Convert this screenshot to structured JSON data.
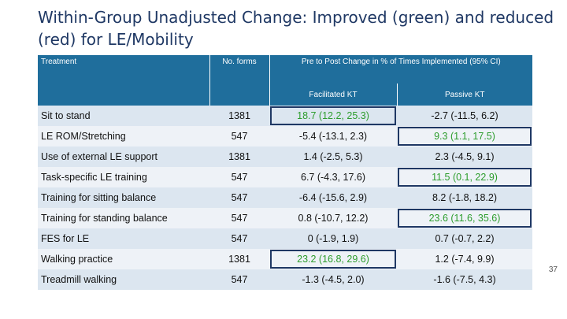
{
  "title": "Within-Group Unadjusted Change: Improved (green) and reduced (red) for LE/Mobility",
  "table": {
    "headers": {
      "treatment": "Treatment",
      "forms": "No. forms",
      "change": "Pre to Post Change in % of Times Implemented (95% CI)",
      "facilitated": "Facilitated KT",
      "passive": "Passive KT"
    },
    "rows": [
      {
        "treatment": "Sit to stand",
        "forms": "1381",
        "facilitated": "18.7 (12.2, 25.3)",
        "passive": "-2.7 (-11.5, 6.2)"
      },
      {
        "treatment": "LE ROM/Stretching",
        "forms": "547",
        "facilitated": "-5.4 (-13.1, 2.3)",
        "passive": "9.3 (1.1, 17.5)"
      },
      {
        "treatment": "Use of external LE support",
        "forms": "1381",
        "facilitated": "1.4 (-2.5, 5.3)",
        "passive": "2.3 (-4.5, 9.1)"
      },
      {
        "treatment": "Task-specific LE training",
        "forms": "547",
        "facilitated": "6.7 (-4.3, 17.6)",
        "passive": "11.5 (0.1, 22.9)"
      },
      {
        "treatment": "Training for sitting balance",
        "forms": "547",
        "facilitated": "-6.4 (-15.6, 2.9)",
        "passive": "8.2 (-1.8, 18.2)"
      },
      {
        "treatment": "Training for standing balance",
        "forms": "547",
        "facilitated": "0.8 (-10.7, 12.2)",
        "passive": "23.6 (11.6, 35.6)"
      },
      {
        "treatment": "FES for LE",
        "forms": "547",
        "facilitated": "0 (-1.9, 1.9)",
        "passive": "0.7 (-0.7, 2.2)"
      },
      {
        "treatment": "Walking practice",
        "forms": "1381",
        "facilitated": "23.2 (16.8, 29.6)",
        "passive": "1.2 (-7.4, 9.9)"
      },
      {
        "treatment": "Treadmill walking",
        "forms": "547",
        "facilitated": "-1.3 (-4.5, 2.0)",
        "passive": "-1.6 (-7.5, 4.3)"
      }
    ]
  },
  "page_number": "37",
  "colors": {
    "header_bg": "#1f6e9c",
    "improved": "#2d9d2d",
    "highlight_border": "#1f3864",
    "row_odd": "#dce6f0",
    "row_even": "#eef2f7"
  }
}
